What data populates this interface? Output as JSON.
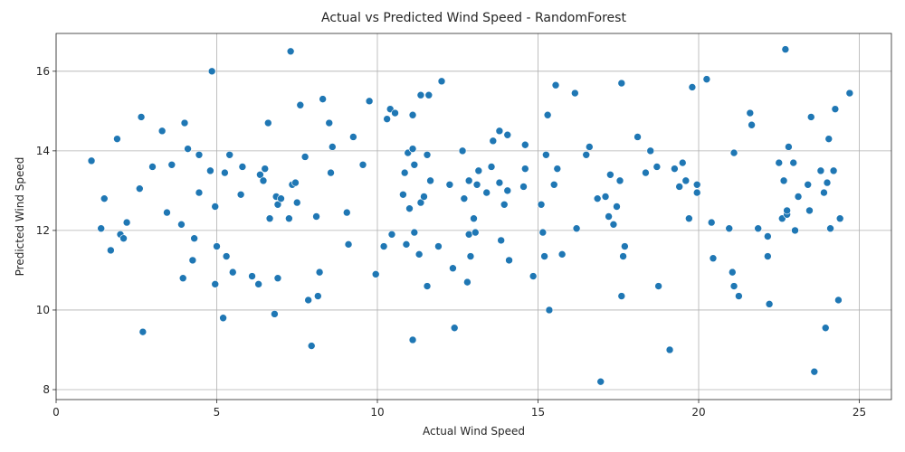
{
  "chart_data": {
    "type": "scatter",
    "title": "Actual vs Predicted Wind Speed - RandomForest",
    "xlabel": "Actual Wind Speed",
    "ylabel": "Predicted Wind Speed",
    "xlim": [
      0,
      26
    ],
    "ylim": [
      7.75,
      16.95
    ],
    "xticks": [
      0,
      5,
      10,
      15,
      20,
      25
    ],
    "yticks": [
      8,
      10,
      12,
      14,
      16
    ],
    "grid": true,
    "color": "#1f77b4",
    "points": [
      [
        1.1,
        13.75
      ],
      [
        1.4,
        12.05
      ],
      [
        1.5,
        12.8
      ],
      [
        1.7,
        11.5
      ],
      [
        1.9,
        14.3
      ],
      [
        2.0,
        11.9
      ],
      [
        2.1,
        11.8
      ],
      [
        2.2,
        12.2
      ],
      [
        2.6,
        13.05
      ],
      [
        2.65,
        14.85
      ],
      [
        2.7,
        9.45
      ],
      [
        3.0,
        13.6
      ],
      [
        3.3,
        14.5
      ],
      [
        3.45,
        12.45
      ],
      [
        3.6,
        13.65
      ],
      [
        3.9,
        12.15
      ],
      [
        3.95,
        10.8
      ],
      [
        4.0,
        14.7
      ],
      [
        4.1,
        14.05
      ],
      [
        4.25,
        11.25
      ],
      [
        4.3,
        11.8
      ],
      [
        4.45,
        12.95
      ],
      [
        4.45,
        13.9
      ],
      [
        4.8,
        13.5
      ],
      [
        4.85,
        16.0
      ],
      [
        4.95,
        12.6
      ],
      [
        4.95,
        10.65
      ],
      [
        5.0,
        11.6
      ],
      [
        5.2,
        9.8
      ],
      [
        5.25,
        13.45
      ],
      [
        5.3,
        11.35
      ],
      [
        5.4,
        13.9
      ],
      [
        5.5,
        10.95
      ],
      [
        5.75,
        12.9
      ],
      [
        5.8,
        13.6
      ],
      [
        6.1,
        10.85
      ],
      [
        6.3,
        10.65
      ],
      [
        6.35,
        13.4
      ],
      [
        6.45,
        13.25
      ],
      [
        6.5,
        13.55
      ],
      [
        6.6,
        14.7
      ],
      [
        6.65,
        12.3
      ],
      [
        6.8,
        9.9
      ],
      [
        6.85,
        12.85
      ],
      [
        6.9,
        10.8
      ],
      [
        6.9,
        12.65
      ],
      [
        7.0,
        12.8
      ],
      [
        7.25,
        12.3
      ],
      [
        7.3,
        16.5
      ],
      [
        7.35,
        13.15
      ],
      [
        7.45,
        13.2
      ],
      [
        7.5,
        12.7
      ],
      [
        7.6,
        15.15
      ],
      [
        7.75,
        13.85
      ],
      [
        7.85,
        10.25
      ],
      [
        7.95,
        9.1
      ],
      [
        8.1,
        12.35
      ],
      [
        8.15,
        10.35
      ],
      [
        8.2,
        10.95
      ],
      [
        8.3,
        15.3
      ],
      [
        8.5,
        14.7
      ],
      [
        8.55,
        13.45
      ],
      [
        8.6,
        14.1
      ],
      [
        9.05,
        12.45
      ],
      [
        9.1,
        11.65
      ],
      [
        9.25,
        14.35
      ],
      [
        9.55,
        13.65
      ],
      [
        9.75,
        15.25
      ],
      [
        9.95,
        10.9
      ],
      [
        10.2,
        11.6
      ],
      [
        10.3,
        14.8
      ],
      [
        10.4,
        15.05
      ],
      [
        10.45,
        11.9
      ],
      [
        10.55,
        14.95
      ],
      [
        10.8,
        12.9
      ],
      [
        10.85,
        13.45
      ],
      [
        10.9,
        11.65
      ],
      [
        10.95,
        13.95
      ],
      [
        11.0,
        12.55
      ],
      [
        11.1,
        9.25
      ],
      [
        11.1,
        14.05
      ],
      [
        11.1,
        14.9
      ],
      [
        11.15,
        13.65
      ],
      [
        11.15,
        11.95
      ],
      [
        11.3,
        11.4
      ],
      [
        11.35,
        12.7
      ],
      [
        11.35,
        15.4
      ],
      [
        11.45,
        12.85
      ],
      [
        11.55,
        13.9
      ],
      [
        11.55,
        10.6
      ],
      [
        11.6,
        15.4
      ],
      [
        11.65,
        13.25
      ],
      [
        11.9,
        11.6
      ],
      [
        12.0,
        15.75
      ],
      [
        12.25,
        13.15
      ],
      [
        12.35,
        11.05
      ],
      [
        12.4,
        9.55
      ],
      [
        12.65,
        14.0
      ],
      [
        12.7,
        12.8
      ],
      [
        12.8,
        10.7
      ],
      [
        12.85,
        13.25
      ],
      [
        12.85,
        11.9
      ],
      [
        12.9,
        11.35
      ],
      [
        13.0,
        12.3
      ],
      [
        13.05,
        11.95
      ],
      [
        13.1,
        13.15
      ],
      [
        13.15,
        13.5
      ],
      [
        13.4,
        12.95
      ],
      [
        13.55,
        13.6
      ],
      [
        13.6,
        14.25
      ],
      [
        13.8,
        14.5
      ],
      [
        13.8,
        13.2
      ],
      [
        13.85,
        11.75
      ],
      [
        13.95,
        12.65
      ],
      [
        14.05,
        13.0
      ],
      [
        14.05,
        14.4
      ],
      [
        14.1,
        11.25
      ],
      [
        14.55,
        13.1
      ],
      [
        14.6,
        14.15
      ],
      [
        14.6,
        13.55
      ],
      [
        14.85,
        10.85
      ],
      [
        15.1,
        12.65
      ],
      [
        15.15,
        11.95
      ],
      [
        15.2,
        11.35
      ],
      [
        15.25,
        13.9
      ],
      [
        15.3,
        14.9
      ],
      [
        15.35,
        10.0
      ],
      [
        15.5,
        13.15
      ],
      [
        15.55,
        15.65
      ],
      [
        15.6,
        13.55
      ],
      [
        15.75,
        11.4
      ],
      [
        16.15,
        15.45
      ],
      [
        16.2,
        12.05
      ],
      [
        16.5,
        13.9
      ],
      [
        16.6,
        14.1
      ],
      [
        16.85,
        12.8
      ],
      [
        16.95,
        8.2
      ],
      [
        17.1,
        12.85
      ],
      [
        17.2,
        12.35
      ],
      [
        17.25,
        13.4
      ],
      [
        17.35,
        12.15
      ],
      [
        17.45,
        12.6
      ],
      [
        17.55,
        13.25
      ],
      [
        17.6,
        10.35
      ],
      [
        17.6,
        15.7
      ],
      [
        17.65,
        11.35
      ],
      [
        17.7,
        11.6
      ],
      [
        18.1,
        14.35
      ],
      [
        18.35,
        13.45
      ],
      [
        18.5,
        14.0
      ],
      [
        18.7,
        13.6
      ],
      [
        18.75,
        10.6
      ],
      [
        19.1,
        9.0
      ],
      [
        19.25,
        13.55
      ],
      [
        19.4,
        13.1
      ],
      [
        19.5,
        13.7
      ],
      [
        19.6,
        13.25
      ],
      [
        19.7,
        12.3
      ],
      [
        19.8,
        15.6
      ],
      [
        19.95,
        13.15
      ],
      [
        19.95,
        12.95
      ],
      [
        20.25,
        15.8
      ],
      [
        20.4,
        12.2
      ],
      [
        20.45,
        11.3
      ],
      [
        20.95,
        12.05
      ],
      [
        21.05,
        10.95
      ],
      [
        21.1,
        13.95
      ],
      [
        21.1,
        10.6
      ],
      [
        21.25,
        10.35
      ],
      [
        21.6,
        14.95
      ],
      [
        21.65,
        14.65
      ],
      [
        21.85,
        12.05
      ],
      [
        22.15,
        11.85
      ],
      [
        22.15,
        11.35
      ],
      [
        22.2,
        10.15
      ],
      [
        22.5,
        13.7
      ],
      [
        22.6,
        12.3
      ],
      [
        22.65,
        13.25
      ],
      [
        22.7,
        16.55
      ],
      [
        22.75,
        12.4
      ],
      [
        22.75,
        12.5
      ],
      [
        22.8,
        14.1
      ],
      [
        22.95,
        13.7
      ],
      [
        23.0,
        12.0
      ],
      [
        23.1,
        12.85
      ],
      [
        23.4,
        13.15
      ],
      [
        23.45,
        12.5
      ],
      [
        23.5,
        14.85
      ],
      [
        23.6,
        8.45
      ],
      [
        23.8,
        13.5
      ],
      [
        23.9,
        12.95
      ],
      [
        23.95,
        9.55
      ],
      [
        24.0,
        13.2
      ],
      [
        24.05,
        14.3
      ],
      [
        24.1,
        12.05
      ],
      [
        24.2,
        13.5
      ],
      [
        24.25,
        15.05
      ],
      [
        24.35,
        10.25
      ],
      [
        24.4,
        12.3
      ],
      [
        24.7,
        15.45
      ]
    ]
  }
}
